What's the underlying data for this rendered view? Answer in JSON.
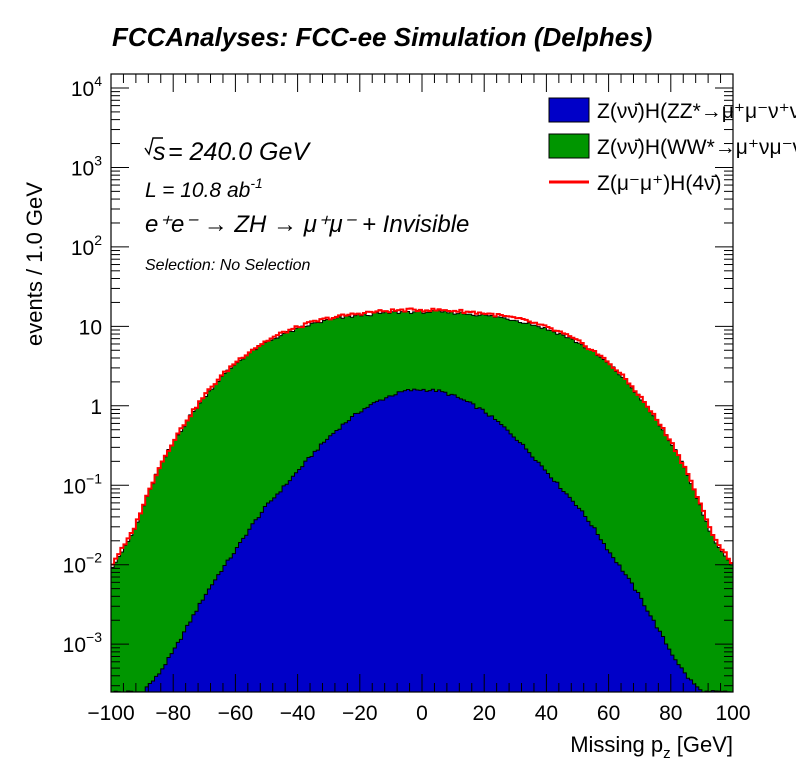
{
  "chart_data": {
    "type": "histogram",
    "title": "FCCAnalyses: FCC-ee Simulation (Delphes)",
    "xlabel": "Missing p",
    "xlabel_sub": "z",
    "xlabel_unit": " [GeV]",
    "ylabel": "events / 1.0 GeV",
    "xlim": [
      -100,
      100
    ],
    "ylim": [
      0.00025,
      15000
    ],
    "yscale": "log",
    "x_ticks": [
      "−100",
      "−80",
      "−60",
      "−40",
      "−20",
      "0",
      "20",
      "40",
      "60",
      "80",
      "100"
    ],
    "x_tick_values": [
      -100,
      -80,
      -60,
      -40,
      -20,
      0,
      20,
      40,
      60,
      80,
      100
    ],
    "y_ticks": [
      {
        "value": 10000,
        "base": "10",
        "exp": "4"
      },
      {
        "value": 1000,
        "base": "10",
        "exp": "3"
      },
      {
        "value": 100,
        "base": "10",
        "exp": "2"
      },
      {
        "value": 10,
        "base": "10",
        "exp": ""
      },
      {
        "value": 1,
        "base": "1",
        "exp": ""
      },
      {
        "value": 0.1,
        "base": "10",
        "exp": "−1"
      },
      {
        "value": 0.01,
        "base": "10",
        "exp": "−2"
      },
      {
        "value": 0.001,
        "base": "10",
        "exp": "−3"
      }
    ],
    "annotations": {
      "sqrt_s": "s",
      "energy": " = 240.0 GeV",
      "lumi": "L = 10.8 ab",
      "lumi_exp": "-1",
      "process": "e⁺e⁻ → ZH → μ⁺μ⁻ + Invisible",
      "selection": "Selection: No Selection"
    },
    "legend_placement": "top-right",
    "series": [
      {
        "name": "Z(νν̄)H(ZZ*→μ⁺μ⁻ν⁺ν⁻)",
        "color": "#0000c8",
        "style": "stacked-fill",
        "x": [
          -100,
          -90,
          -85,
          -80,
          -75,
          -70,
          -65,
          -60,
          -55,
          -50,
          -45,
          -40,
          -35,
          -30,
          -25,
          -20,
          -15,
          -10,
          -5,
          0,
          5,
          10,
          15,
          20,
          25,
          30,
          35,
          40,
          45,
          50,
          55,
          60,
          65,
          70,
          75,
          80,
          85,
          88,
          90,
          100
        ],
        "y": [
          0.00025,
          0.00025,
          0.0004,
          0.0008,
          0.0018,
          0.004,
          0.008,
          0.015,
          0.03,
          0.055,
          0.09,
          0.15,
          0.25,
          0.4,
          0.6,
          0.85,
          1.1,
          1.35,
          1.55,
          1.6,
          1.55,
          1.35,
          1.1,
          0.85,
          0.6,
          0.4,
          0.25,
          0.15,
          0.09,
          0.055,
          0.03,
          0.015,
          0.008,
          0.004,
          0.0018,
          0.0008,
          0.0004,
          0.0003,
          0.00025,
          0.00025
        ]
      },
      {
        "name": "Z(νν̄)H(WW*→μ⁺νμ⁻ν)",
        "color": "#009600",
        "style": "stacked-fill",
        "x": [
          -100,
          -98,
          -95,
          -92,
          -90,
          -85,
          -80,
          -75,
          -70,
          -65,
          -60,
          -55,
          -50,
          -45,
          -40,
          -35,
          -30,
          -25,
          -20,
          -15,
          -10,
          -5,
          0,
          5,
          10,
          15,
          20,
          25,
          30,
          35,
          40,
          45,
          50,
          55,
          60,
          65,
          70,
          75,
          80,
          85,
          90,
          92,
          95,
          98,
          100
        ],
        "y": [
          0.009,
          0.012,
          0.018,
          0.03,
          0.05,
          0.15,
          0.35,
          0.7,
          1.3,
          2.2,
          3.4,
          4.8,
          6.3,
          7.9,
          9.3,
          10.8,
          12.0,
          13.0,
          13.8,
          14.4,
          14.9,
          15.2,
          15.3,
          15.2,
          14.9,
          14.4,
          13.8,
          13.0,
          12.0,
          10.8,
          9.3,
          7.9,
          6.3,
          4.8,
          3.4,
          2.2,
          1.3,
          0.7,
          0.35,
          0.15,
          0.05,
          0.03,
          0.018,
          0.012,
          0.009
        ]
      },
      {
        "name": "Z(μ⁻μ⁺)H(4ν̄)",
        "color": "#ff0000",
        "style": "line",
        "x": [
          -100,
          -98,
          -95,
          -92,
          -90,
          -85,
          -80,
          -75,
          -70,
          -65,
          -60,
          -55,
          -50,
          -45,
          -40,
          -35,
          -30,
          -25,
          -20,
          -15,
          -10,
          -5,
          0,
          5,
          10,
          15,
          20,
          25,
          30,
          35,
          40,
          45,
          50,
          55,
          60,
          65,
          70,
          75,
          80,
          85,
          90,
          92,
          95,
          98,
          100
        ],
        "y": [
          0.0095,
          0.013,
          0.019,
          0.032,
          0.052,
          0.155,
          0.36,
          0.72,
          1.34,
          2.27,
          3.52,
          4.98,
          6.55,
          8.25,
          9.75,
          11.35,
          12.65,
          13.7,
          14.6,
          15.25,
          15.75,
          16.05,
          16.15,
          16.05,
          15.75,
          15.25,
          14.6,
          13.7,
          12.65,
          11.35,
          9.75,
          8.25,
          6.55,
          4.98,
          3.52,
          2.27,
          1.34,
          0.72,
          0.36,
          0.155,
          0.052,
          0.032,
          0.019,
          0.013,
          0.0095
        ]
      }
    ]
  }
}
